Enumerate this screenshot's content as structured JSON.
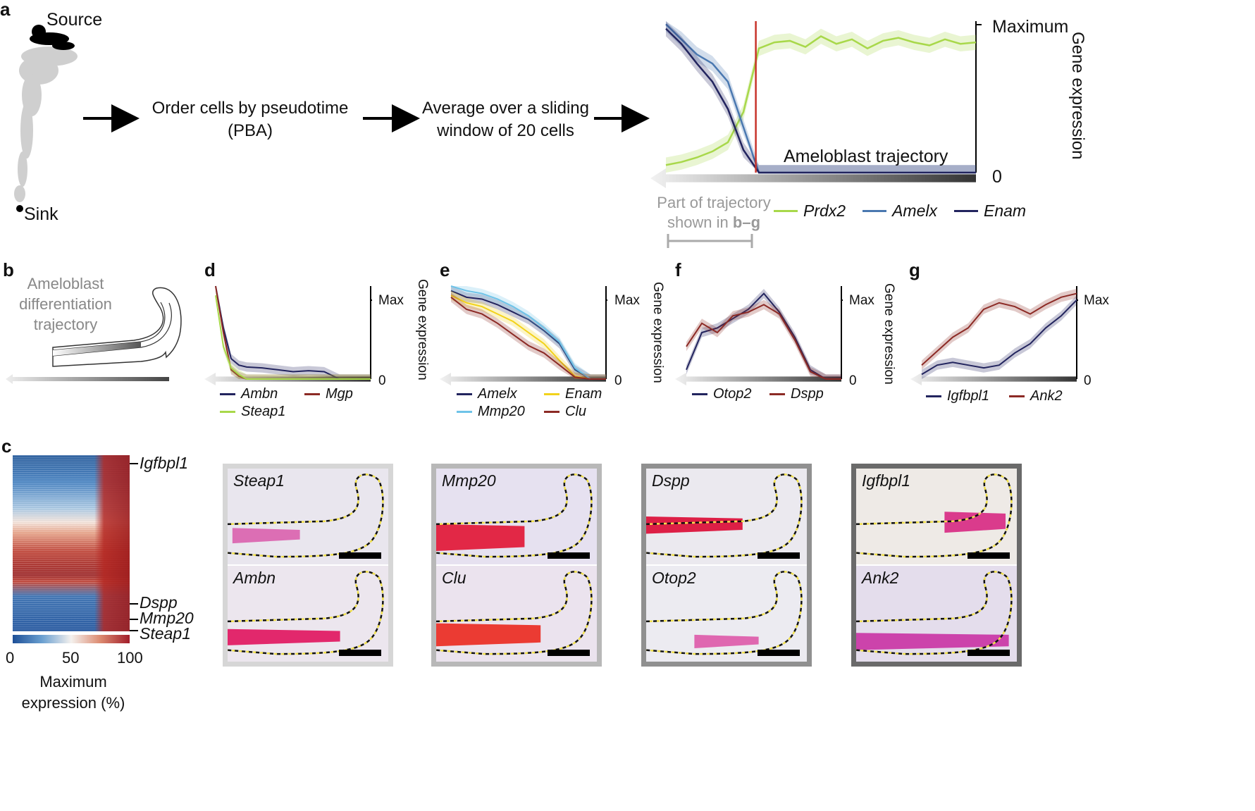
{
  "panels": {
    "a": "a",
    "b": "b",
    "c": "c",
    "d": "d",
    "e": "e",
    "f": "f",
    "g": "g"
  },
  "panel_a": {
    "source_label": "Source",
    "sink_label": "Sink",
    "step1_line1": "Order cells by pseudotime",
    "step1_line2": "(PBA)",
    "step2_line1": "Average over a sliding",
    "step2_line2": "window of 20 cells",
    "max_label": "Maximum",
    "zero_label": "0",
    "y_axis_label": "Gene expression",
    "trajectory_label": "Ameloblast trajectory",
    "part_line1": "Part of trajectory",
    "part_line2_a": "shown in ",
    "part_line2_b": "b–g",
    "legend": [
      {
        "name": "Prdx2",
        "color": "#a8d84a"
      },
      {
        "name": "Amelx",
        "color": "#4a78b0"
      },
      {
        "name": "Enam",
        "color": "#22245e"
      }
    ],
    "marker_color": "#c8332a"
  },
  "panel_b": {
    "line1": "Ameloblast",
    "line2": "differentiation",
    "line3": "trajectory"
  },
  "small_axes": {
    "max": "Max",
    "zero": "0",
    "ylabel": "Gene expression"
  },
  "panel_d": {
    "legend": [
      {
        "name": "Ambn",
        "color": "#22245e"
      },
      {
        "name": "Mgp",
        "color": "#8c2a25"
      },
      {
        "name": "Steap1",
        "color": "#a8d84a"
      }
    ]
  },
  "panel_e": {
    "legend": [
      {
        "name": "Amelx",
        "color": "#22245e"
      },
      {
        "name": "Enam",
        "color": "#f2d21b"
      },
      {
        "name": "Mmp20",
        "color": "#6ec3e8"
      },
      {
        "name": "Clu",
        "color": "#8c2a25"
      }
    ]
  },
  "panel_f": {
    "legend": [
      {
        "name": "Otop2",
        "color": "#22245e"
      },
      {
        "name": "Dspp",
        "color": "#8c2a25"
      }
    ]
  },
  "panel_g": {
    "legend": [
      {
        "name": "Igfbpl1",
        "color": "#22245e"
      },
      {
        "name": "Ank2",
        "color": "#8c2a25"
      }
    ]
  },
  "panel_c": {
    "gene_labels": [
      "Igfbpl1",
      "Dspp",
      "Mmp20",
      "Steap1"
    ],
    "colorbar_ticks": [
      "0",
      "50",
      "100"
    ],
    "colorbar_label_line1": "Maximum",
    "colorbar_label_line2": "expression (%)"
  },
  "tissue_panels": [
    {
      "name": "Steap1"
    },
    {
      "name": "Mmp20"
    },
    {
      "name": "Dspp"
    },
    {
      "name": "Igfbpl1"
    },
    {
      "name": "Ambn"
    },
    {
      "name": "Clu"
    },
    {
      "name": "Otop2"
    },
    {
      "name": "Ank2"
    }
  ],
  "chart_data": [
    {
      "type": "line",
      "panel": "a",
      "title": "",
      "xlabel": "Ameloblast trajectory",
      "ylabel": "Gene expression",
      "ytick_labels": [
        "0",
        "Maximum"
      ],
      "x": [
        0,
        0.05,
        0.1,
        0.15,
        0.2,
        0.25,
        0.3,
        0.35,
        0.4,
        0.45,
        0.5,
        0.55,
        0.6,
        0.65,
        0.7,
        0.75,
        0.8,
        0.85,
        0.9,
        0.95,
        1.0
      ],
      "series": [
        {
          "name": "Prdx2",
          "values": [
            0.05,
            0.07,
            0.1,
            0.14,
            0.2,
            0.4,
            0.82,
            0.86,
            0.87,
            0.83,
            0.9,
            0.85,
            0.88,
            0.82,
            0.87,
            0.89,
            0.86,
            0.84,
            0.88,
            0.85,
            0.86
          ]
        },
        {
          "name": "Amelx",
          "values": [
            0.98,
            0.88,
            0.78,
            0.72,
            0.6,
            0.3,
            0.0,
            0,
            0,
            0,
            0,
            0,
            0,
            0,
            0,
            0,
            0,
            0,
            0,
            0,
            0
          ]
        },
        {
          "name": "Enam",
          "values": [
            0.95,
            0.85,
            0.72,
            0.6,
            0.42,
            0.15,
            0.0,
            0,
            0,
            0,
            0,
            0,
            0,
            0,
            0,
            0,
            0,
            0,
            0,
            0,
            0
          ]
        }
      ]
    },
    {
      "type": "line",
      "panel": "d",
      "ytick_labels": [
        "0",
        "Max"
      ],
      "ylabel": "Gene expression",
      "x": [
        0,
        0.05,
        0.1,
        0.15,
        0.2,
        0.3,
        0.4,
        0.5,
        0.6,
        0.7,
        0.8,
        1.0
      ],
      "series": [
        {
          "name": "Ambn",
          "values": [
            1.0,
            0.55,
            0.22,
            0.15,
            0.13,
            0.12,
            0.1,
            0.08,
            0.09,
            0.08,
            0.0,
            0.0
          ]
        },
        {
          "name": "Mgp",
          "values": [
            1.0,
            0.5,
            0.1,
            0.03,
            0.0,
            0.0,
            0.0,
            0.0,
            0.0,
            0.0,
            0.0,
            0.0
          ]
        },
        {
          "name": "Steap1",
          "values": [
            0.9,
            0.35,
            0.12,
            0.05,
            0.0,
            0.0,
            0.0,
            0.0,
            0.0,
            0.0,
            0.0,
            0.0
          ]
        }
      ]
    },
    {
      "type": "line",
      "panel": "e",
      "ytick_labels": [
        "0",
        "Max"
      ],
      "ylabel": "Gene expression",
      "x": [
        0,
        0.1,
        0.2,
        0.3,
        0.4,
        0.5,
        0.6,
        0.7,
        0.8,
        0.9,
        1.0
      ],
      "series": [
        {
          "name": "Amelx",
          "values": [
            0.95,
            0.88,
            0.86,
            0.8,
            0.72,
            0.64,
            0.52,
            0.38,
            0.1,
            0.0,
            0.0
          ]
        },
        {
          "name": "Enam",
          "values": [
            0.9,
            0.82,
            0.78,
            0.7,
            0.62,
            0.5,
            0.38,
            0.2,
            0.03,
            0.0,
            0.0
          ]
        },
        {
          "name": "Mmp20",
          "values": [
            1.0,
            0.95,
            0.92,
            0.86,
            0.78,
            0.68,
            0.55,
            0.4,
            0.12,
            0.0,
            0.0
          ]
        },
        {
          "name": "Clu",
          "values": [
            0.88,
            0.75,
            0.7,
            0.6,
            0.48,
            0.36,
            0.28,
            0.15,
            0.02,
            0.0,
            0.0
          ]
        }
      ]
    },
    {
      "type": "line",
      "panel": "f",
      "ytick_labels": [
        "0",
        "Max"
      ],
      "ylabel": "Gene expression",
      "x": [
        0,
        0.1,
        0.2,
        0.3,
        0.4,
        0.5,
        0.6,
        0.7,
        0.8,
        0.9,
        1.0
      ],
      "series": [
        {
          "name": "Otop2",
          "values": [
            0.1,
            0.5,
            0.55,
            0.65,
            0.75,
            0.92,
            0.72,
            0.45,
            0.1,
            0.0,
            0.0
          ]
        },
        {
          "name": "Dspp",
          "values": [
            0.35,
            0.6,
            0.5,
            0.68,
            0.72,
            0.8,
            0.7,
            0.42,
            0.08,
            0.0,
            0.0
          ]
        }
      ]
    },
    {
      "type": "line",
      "panel": "g",
      "ytick_labels": [
        "0",
        "Max"
      ],
      "ylabel": "",
      "x": [
        0,
        0.1,
        0.2,
        0.3,
        0.4,
        0.5,
        0.6,
        0.7,
        0.8,
        0.9,
        1.0
      ],
      "series": [
        {
          "name": "Igfbpl1",
          "values": [
            0.05,
            0.15,
            0.18,
            0.15,
            0.12,
            0.15,
            0.28,
            0.38,
            0.55,
            0.68,
            0.85
          ]
        },
        {
          "name": "Ank2",
          "values": [
            0.15,
            0.3,
            0.45,
            0.55,
            0.75,
            0.82,
            0.78,
            0.7,
            0.8,
            0.88,
            0.92
          ]
        }
      ]
    }
  ]
}
